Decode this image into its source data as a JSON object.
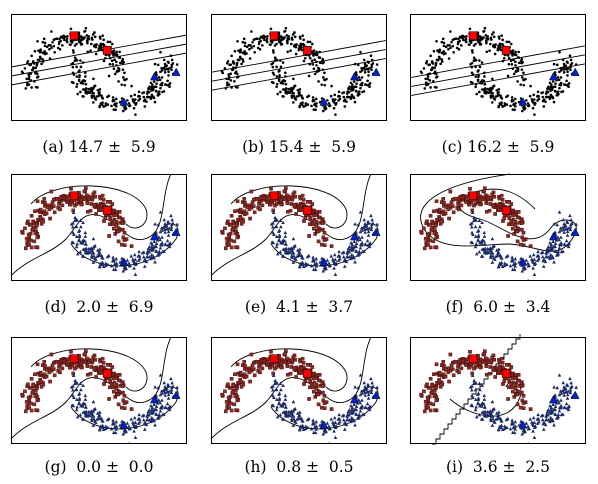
{
  "captions": [
    "(a) 14.7 ±  5.9",
    "(b) 15.4 ±  5.9",
    "(c) 16.2 ±  5.9",
    "(d)  2.0 ±  6.9",
    "(e)  4.1 ±  3.7",
    "(f)  6.0 ±  3.4",
    "(g)  0.0 ±  0.0",
    "(h)  0.8 ±  0.5",
    "(i)  3.6 ±  2.5"
  ],
  "chart_data": [
    {
      "type": "scatter",
      "id": "a",
      "classes_colored": false,
      "boundary": "linear-margin",
      "line_offset": 0.0
    },
    {
      "type": "scatter",
      "id": "b",
      "classes_colored": false,
      "boundary": "linear-margin",
      "line_offset": 0.05
    },
    {
      "type": "scatter",
      "id": "c",
      "classes_colored": false,
      "boundary": "linear-margin",
      "line_offset": 0.1
    },
    {
      "type": "scatter",
      "id": "d",
      "classes_colored": true,
      "boundary": "curved"
    },
    {
      "type": "scatter",
      "id": "e",
      "classes_colored": true,
      "boundary": "curved"
    },
    {
      "type": "scatter",
      "id": "f",
      "classes_colored": true,
      "boundary": "curved-closed"
    },
    {
      "type": "scatter",
      "id": "g",
      "classes_colored": true,
      "boundary": "curved"
    },
    {
      "type": "scatter",
      "id": "h",
      "classes_colored": true,
      "boundary": "curved"
    },
    {
      "type": "scatter",
      "id": "i",
      "classes_colored": true,
      "boundary": "staircase"
    }
  ],
  "colors": {
    "class_top": "#8b2a22",
    "class_bottom": "#1c2a66",
    "labeled_top": "#ff0000",
    "labeled_bottom": "#0022cc",
    "unlabeled": "#000000"
  }
}
